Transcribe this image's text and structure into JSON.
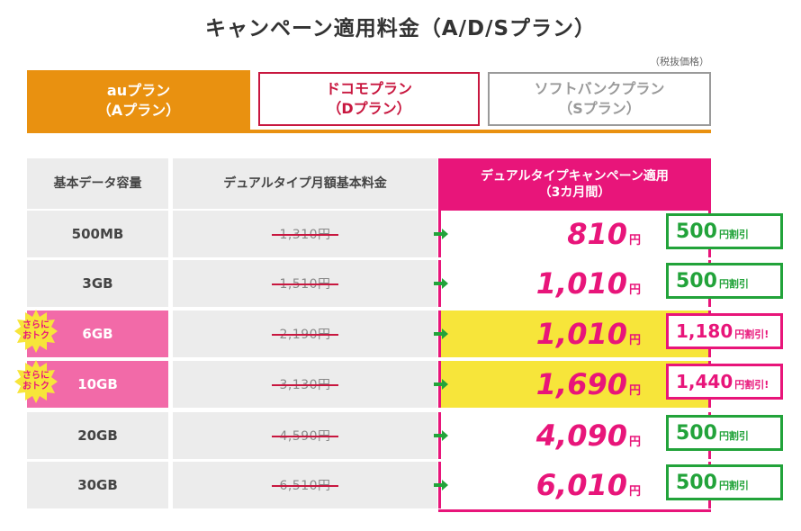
{
  "title": "キャンペーン適用料金（A/D/Sプラン）",
  "tax_note": "（税抜価格）",
  "tabs": [
    {
      "line1": "auプラン",
      "line2": "（Aプラン）"
    },
    {
      "line1": "ドコモプラン",
      "line2": "（Dプラン）"
    },
    {
      "line1": "ソフトバンクプラン",
      "line2": "（Sプラン）"
    }
  ],
  "table": {
    "header_data": "基本データ容量",
    "header_price": "デュアルタイプ月額基本料金",
    "header_camp_line1": "デュアルタイプキャンペーン適用",
    "header_camp_line2": "（3カ月間）",
    "yen": "円",
    "badge_line1": "さらに",
    "badge_line2": "おトク",
    "rows": [
      {
        "data": "500MB",
        "old_price": "1,310円",
        "new_price": "810",
        "discount": "500",
        "discount_label": "円割引"
      },
      {
        "data": "3GB",
        "old_price": "1,510円",
        "new_price": "1,010",
        "discount": "500",
        "discount_label": "円割引"
      },
      {
        "data": "6GB",
        "old_price": "2,190円",
        "new_price": "1,010",
        "discount": "1,180",
        "discount_label": "円割引!"
      },
      {
        "data": "10GB",
        "old_price": "3,130円",
        "new_price": "1,690",
        "discount": "1,440",
        "discount_label": "円割引!"
      },
      {
        "data": "20GB",
        "old_price": "4,590円",
        "new_price": "4,090",
        "discount": "500",
        "discount_label": "円割引"
      },
      {
        "data": "30GB",
        "old_price": "6,510円",
        "new_price": "6,010",
        "discount": "500",
        "discount_label": "円割引"
      }
    ]
  },
  "colors": {
    "orange": "#e99110",
    "docomo": "#c8173f",
    "softbank": "#9a9a9a",
    "pink": "#e8157a",
    "green": "#22a33a",
    "yellow": "#f7e53a"
  }
}
